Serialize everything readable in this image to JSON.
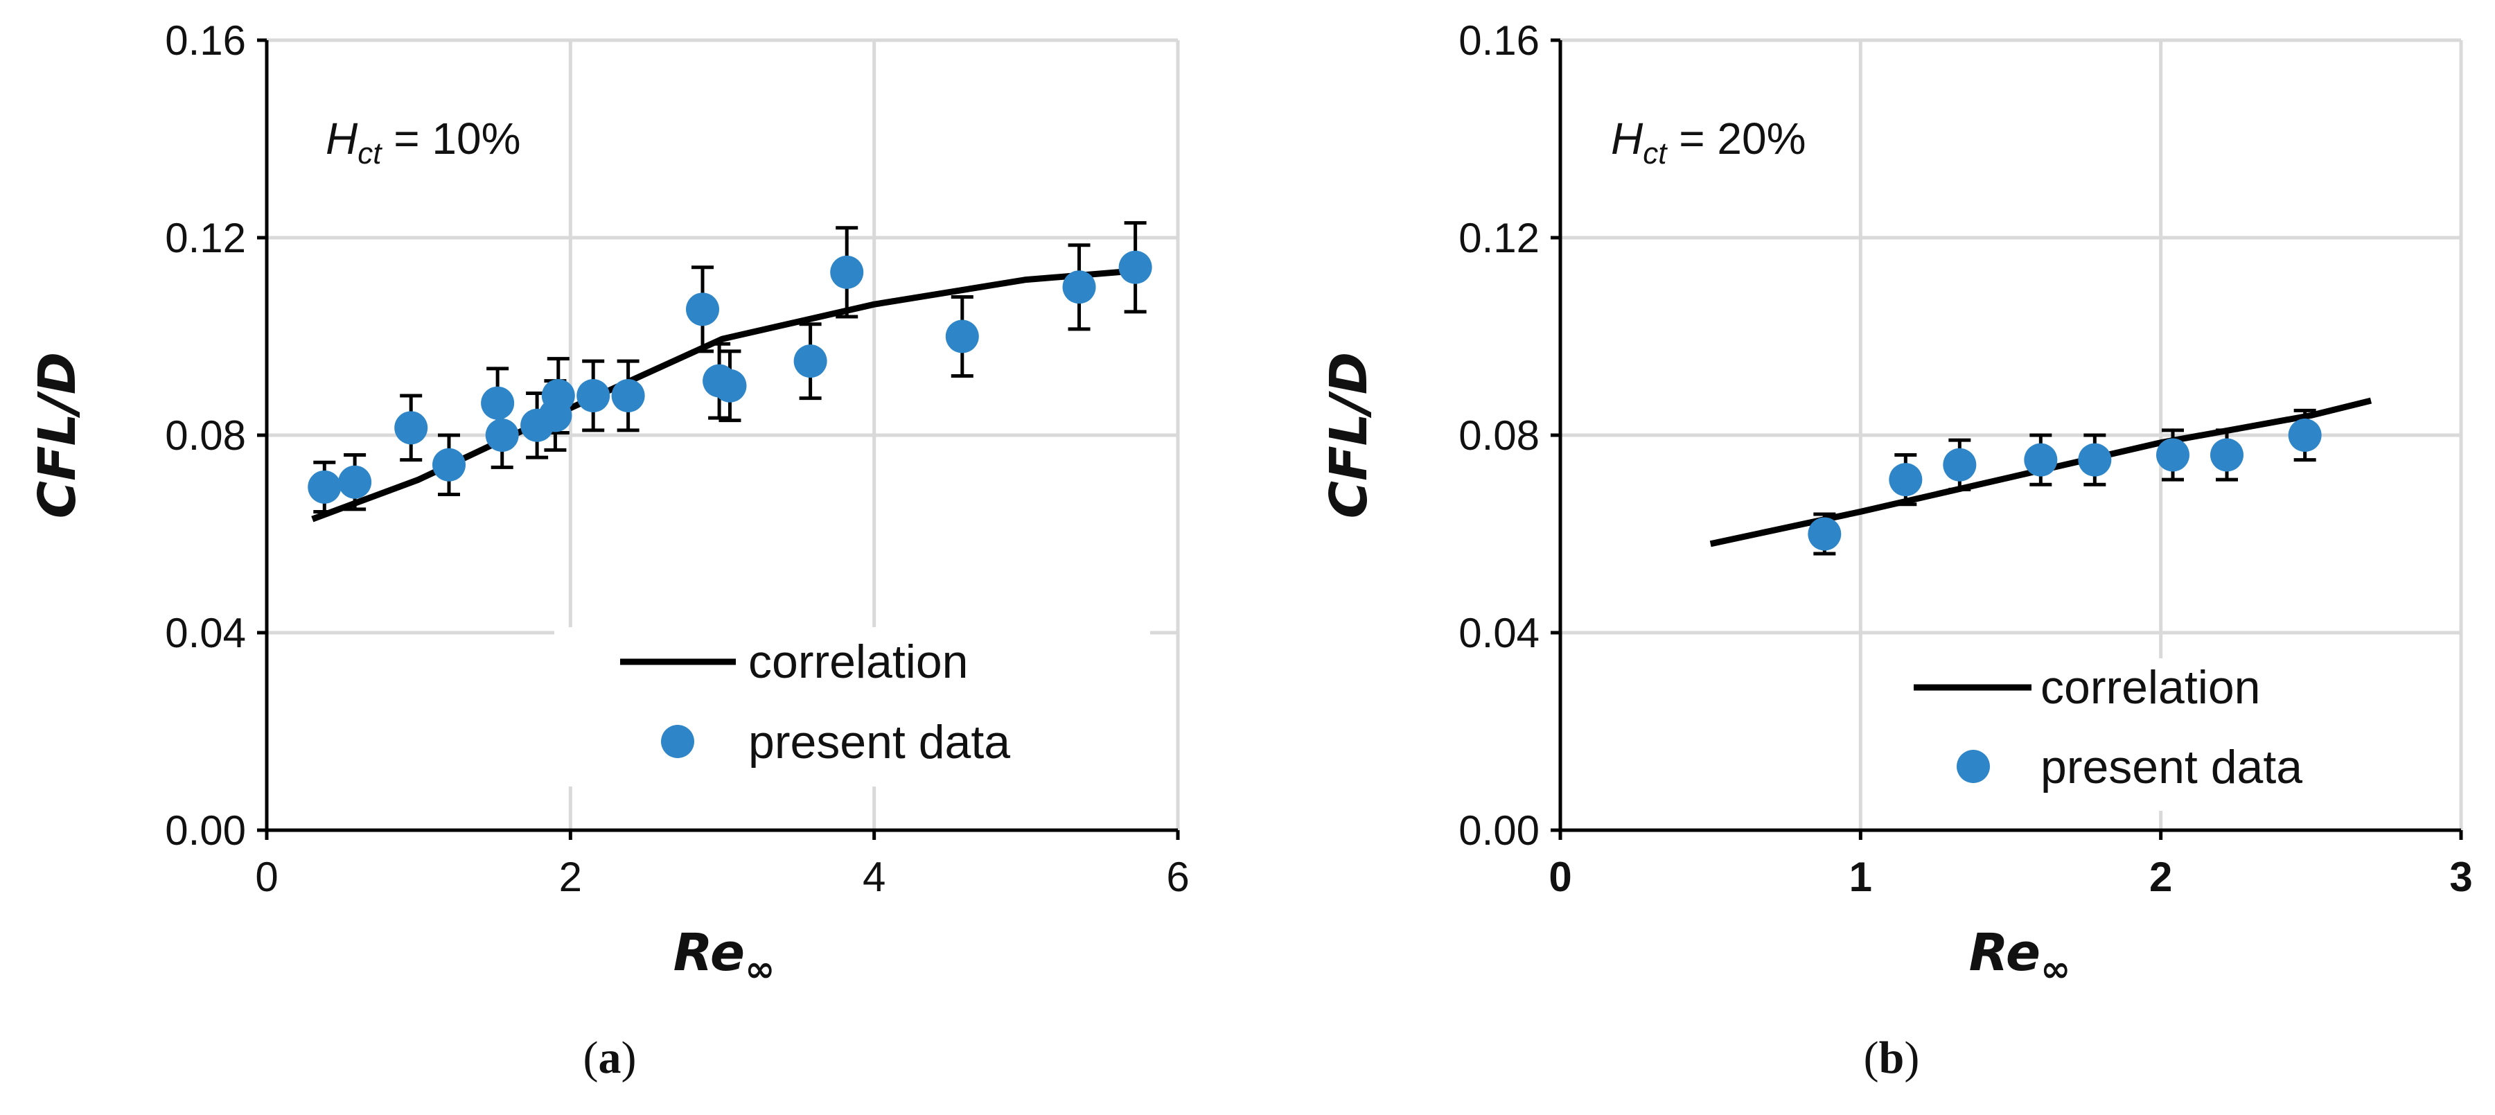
{
  "colors": {
    "marker": "#2E86C8",
    "line": "#000000",
    "grid": "#D9D9D9",
    "axis": "#000000"
  },
  "chart_data": [
    {
      "type": "scatter",
      "panel_label": "a",
      "annotation": {
        "symbol": "H",
        "subscript": "ct",
        "text": " = 10%"
      },
      "xlabel": {
        "base": "Re",
        "subscript": "∞"
      },
      "ylabel": "CFL/D",
      "xlim": [
        0,
        6
      ],
      "ylim": [
        0,
        0.16
      ],
      "xticks": [
        0,
        2,
        4,
        6
      ],
      "xtick_labels": [
        "0",
        "2",
        "4",
        "6"
      ],
      "yticks": [
        0,
        0.04,
        0.08,
        0.12,
        0.16
      ],
      "ytick_labels": [
        "0.00",
        "0.04",
        "0.08",
        "0.12",
        "0.16"
      ],
      "grid": true,
      "legend_position": "bottom-right",
      "series": [
        {
          "name": "correlation",
          "kind": "line",
          "x": [
            0.3,
            1.0,
            2.0,
            3.0,
            4.0,
            5.0,
            5.8
          ],
          "y": [
            0.063,
            0.071,
            0.0855,
            0.0995,
            0.1065,
            0.1115,
            0.1135
          ]
        },
        {
          "name": "present data",
          "kind": "scatter",
          "x": [
            0.38,
            0.58,
            0.95,
            1.2,
            1.52,
            1.55,
            1.78,
            1.9,
            1.92,
            2.15,
            2.38,
            2.87,
            2.98,
            3.05,
            3.58,
            3.82,
            4.58,
            5.35,
            5.72
          ],
          "y": [
            0.0695,
            0.0705,
            0.0815,
            0.074,
            0.0865,
            0.08,
            0.082,
            0.084,
            0.088,
            0.088,
            0.088,
            0.1055,
            0.091,
            0.09,
            0.095,
            0.113,
            0.1,
            0.11,
            0.114
          ],
          "error": [
            0.005,
            0.0055,
            0.0065,
            0.006,
            0.007,
            0.0065,
            0.0065,
            0.007,
            0.0075,
            0.007,
            0.007,
            0.0085,
            0.0075,
            0.007,
            0.0075,
            0.009,
            0.008,
            0.0085,
            0.009
          ]
        }
      ]
    },
    {
      "type": "scatter",
      "panel_label": "b",
      "annotation": {
        "symbol": "H",
        "subscript": "ct",
        "text": " = 20%"
      },
      "xlabel": {
        "base": "Re",
        "subscript": "∞"
      },
      "ylabel": "CFL/D",
      "xlim": [
        0,
        3
      ],
      "ylim": [
        0,
        0.16
      ],
      "xticks": [
        0,
        1,
        2,
        3
      ],
      "xtick_labels": [
        "0",
        "1",
        "2",
        "3"
      ],
      "yticks": [
        0,
        0.04,
        0.08,
        0.12,
        0.16
      ],
      "ytick_labels": [
        "0.00",
        "0.04",
        "0.08",
        "0.12",
        "0.16"
      ],
      "grid": true,
      "legend_position": "bottom-right",
      "series": [
        {
          "name": "correlation",
          "kind": "line",
          "x": [
            0.5,
            1.0,
            1.5,
            2.0,
            2.5,
            2.7
          ],
          "y": [
            0.058,
            0.0645,
            0.0715,
            0.0785,
            0.084,
            0.087
          ]
        },
        {
          "name": "present data",
          "kind": "scatter",
          "x": [
            0.88,
            1.15,
            1.33,
            1.6,
            1.78,
            2.04,
            2.22,
            2.48
          ],
          "y": [
            0.06,
            0.071,
            0.074,
            0.075,
            0.075,
            0.076,
            0.076,
            0.08
          ],
          "error": [
            0.004,
            0.005,
            0.005,
            0.005,
            0.005,
            0.005,
            0.005,
            0.005
          ]
        }
      ]
    }
  ]
}
